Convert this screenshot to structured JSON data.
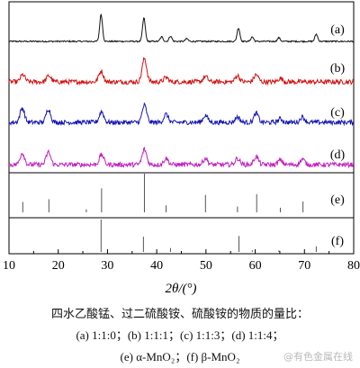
{
  "chart_data": {
    "type": "line",
    "xlabel": "2θ/(°)",
    "xlim": [
      10,
      80
    ],
    "xticks": [
      10,
      20,
      30,
      40,
      50,
      60,
      70,
      80
    ],
    "grid": false,
    "series": [
      {
        "name": "(a)",
        "color": "#111111",
        "kind": "xrd",
        "peaks": [
          [
            28.7,
            30
          ],
          [
            37.4,
            26
          ],
          [
            41.0,
            5
          ],
          [
            42.8,
            6
          ],
          [
            46.1,
            3
          ],
          [
            56.6,
            15
          ],
          [
            59.4,
            5
          ],
          [
            64.8,
            4
          ],
          [
            72.4,
            8
          ]
        ]
      },
      {
        "name": "(b)",
        "color": "#d21010",
        "kind": "xrd",
        "peaks": [
          [
            12.8,
            8
          ],
          [
            18.1,
            7
          ],
          [
            28.7,
            12
          ],
          [
            37.5,
            26
          ],
          [
            41.9,
            5
          ],
          [
            49.9,
            6
          ],
          [
            56.4,
            7
          ],
          [
            60.2,
            8
          ],
          [
            65.1,
            4
          ]
        ]
      },
      {
        "name": "(c)",
        "color": "#1515b4",
        "kind": "xrd",
        "peaks": [
          [
            12.7,
            16
          ],
          [
            18.0,
            15
          ],
          [
            28.8,
            12
          ],
          [
            37.5,
            19
          ],
          [
            41.9,
            9
          ],
          [
            49.9,
            8
          ],
          [
            56.4,
            6
          ],
          [
            60.2,
            10
          ],
          [
            65.1,
            4
          ],
          [
            69.6,
            6
          ]
        ]
      },
      {
        "name": "(d)",
        "color": "#c020c0",
        "kind": "xrd",
        "peaks": [
          [
            12.7,
            13
          ],
          [
            18.0,
            14
          ],
          [
            28.8,
            11
          ],
          [
            37.5,
            17
          ],
          [
            41.9,
            7
          ],
          [
            49.9,
            7
          ],
          [
            56.4,
            7
          ],
          [
            60.2,
            9
          ],
          [
            65.1,
            5
          ],
          [
            69.6,
            6
          ]
        ]
      },
      {
        "name": "(e)",
        "color": "#555555",
        "kind": "reference",
        "lines": [
          [
            12.8,
            0.27
          ],
          [
            18.1,
            0.34
          ],
          [
            25.7,
            0.08
          ],
          [
            28.8,
            0.62
          ],
          [
            37.5,
            1.0
          ],
          [
            41.9,
            0.18
          ],
          [
            49.9,
            0.45
          ],
          [
            56.4,
            0.15
          ],
          [
            60.3,
            0.47
          ],
          [
            65.1,
            0.12
          ],
          [
            69.7,
            0.28
          ]
        ]
      },
      {
        "name": "(f)",
        "color": "#555555",
        "kind": "reference",
        "lines": [
          [
            28.7,
            1.0
          ],
          [
            37.3,
            0.47
          ],
          [
            42.8,
            0.12
          ],
          [
            56.7,
            0.49
          ],
          [
            59.4,
            0.05
          ],
          [
            64.8,
            0.05
          ],
          [
            72.4,
            0.17
          ]
        ]
      }
    ]
  },
  "caption": {
    "line1": "四水乙酸锰、过二硫酸铵、硫酸铵的物质的量比：",
    "line2": "(a) 1:1:0；(b) 1:1:1；(c) 1:1:3；(d) 1:1:4；",
    "line3": "(e) α-MnO₂；(f) β-MnO₂"
  },
  "watermark": "@有色金属在线"
}
